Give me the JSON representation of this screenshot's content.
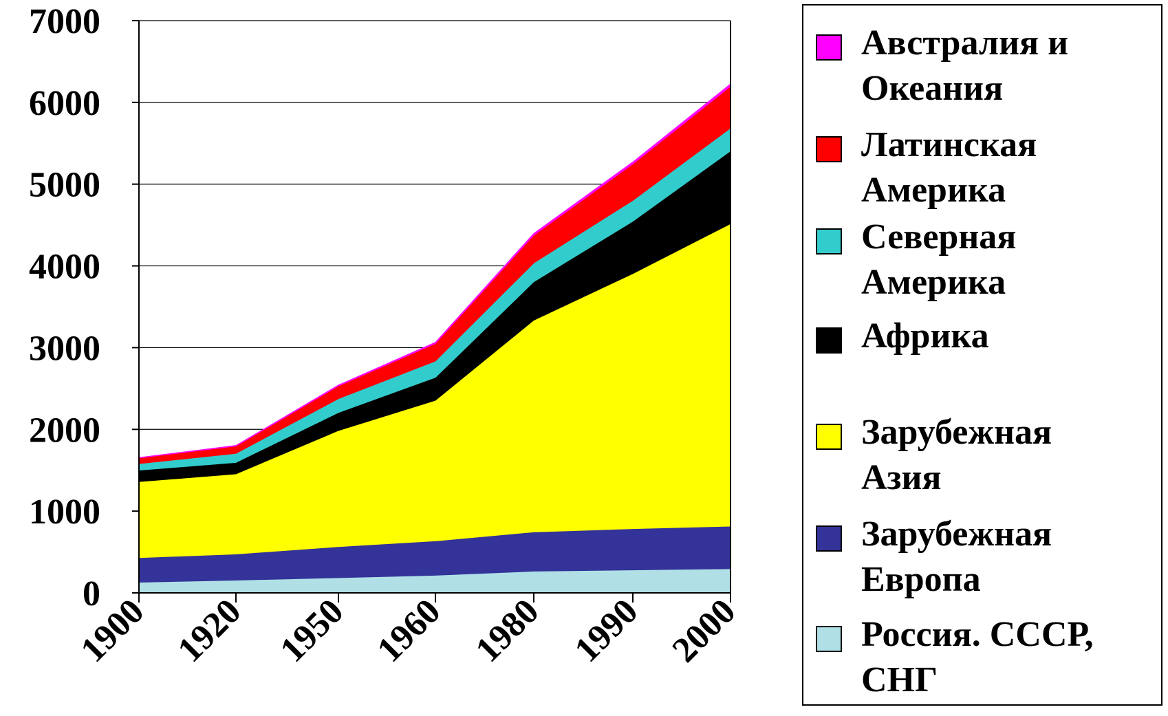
{
  "chart_data": {
    "type": "area",
    "stacked": true,
    "title": "",
    "xlabel": "",
    "ylabel": "",
    "categories": [
      "1900",
      "1920",
      "1950",
      "1960",
      "1980",
      "1990",
      "2000"
    ],
    "ylim": [
      0,
      7000
    ],
    "yticks": [
      "0",
      "1000",
      "2000",
      "3000",
      "4000",
      "5000",
      "6000",
      "7000"
    ],
    "grid": "horizontal",
    "legend_position": "right",
    "series": [
      {
        "name": "Россия. СССР, СНГ",
        "color": "#B0E0E6",
        "values": [
          130,
          155,
          185,
          215,
          265,
          280,
          295
        ]
      },
      {
        "name": "Зарубежная Европа",
        "color": "#333399",
        "values": [
          300,
          320,
          380,
          420,
          480,
          505,
          520
        ]
      },
      {
        "name": "Зарубежная Азия",
        "color": "#FFFF00",
        "values": [
          930,
          980,
          1420,
          1720,
          2590,
          3120,
          3700
        ]
      },
      {
        "name": "Африка",
        "color": "#000000",
        "values": [
          140,
          140,
          220,
          280,
          470,
          640,
          890
        ]
      },
      {
        "name": "Северная Америка",
        "color": "#33CCCC",
        "values": [
          80,
          110,
          170,
          200,
          230,
          255,
          280
        ]
      },
      {
        "name": "Латинская Америка",
        "color": "#FF0000",
        "values": [
          70,
          90,
          155,
          215,
          340,
          445,
          510
        ]
      },
      {
        "name": "Австралия и Океания",
        "color": "#FF00FF",
        "values": [
          6,
          9,
          13,
          16,
          23,
          27,
          31
        ]
      }
    ]
  },
  "legend": [
    {
      "name": "Австралия и Океания",
      "line1": "Австралия и",
      "line2": "Океания",
      "color": "#FF00FF"
    },
    {
      "name": "Латинская Америка",
      "line1": "Латинская",
      "line2": "Америка",
      "color": "#FF0000"
    },
    {
      "name": "Северная Америка",
      "line1": "Северная",
      "line2": "Америка",
      "color": "#33CCCC"
    },
    {
      "name": "Африка",
      "line1": "Африка",
      "line2": "",
      "color": "#000000"
    },
    {
      "name": "Зарубежная Азия",
      "line1": "Зарубежная",
      "line2": "Азия",
      "color": "#FFFF00"
    },
    {
      "name": "Зарубежная Европа",
      "line1": "Зарубежная",
      "line2": "Европа",
      "color": "#333399"
    },
    {
      "name": "Россия. СССР, СНГ",
      "line1": "Россия. СССР,",
      "line2": "СНГ",
      "color": "#B0E0E6"
    }
  ]
}
